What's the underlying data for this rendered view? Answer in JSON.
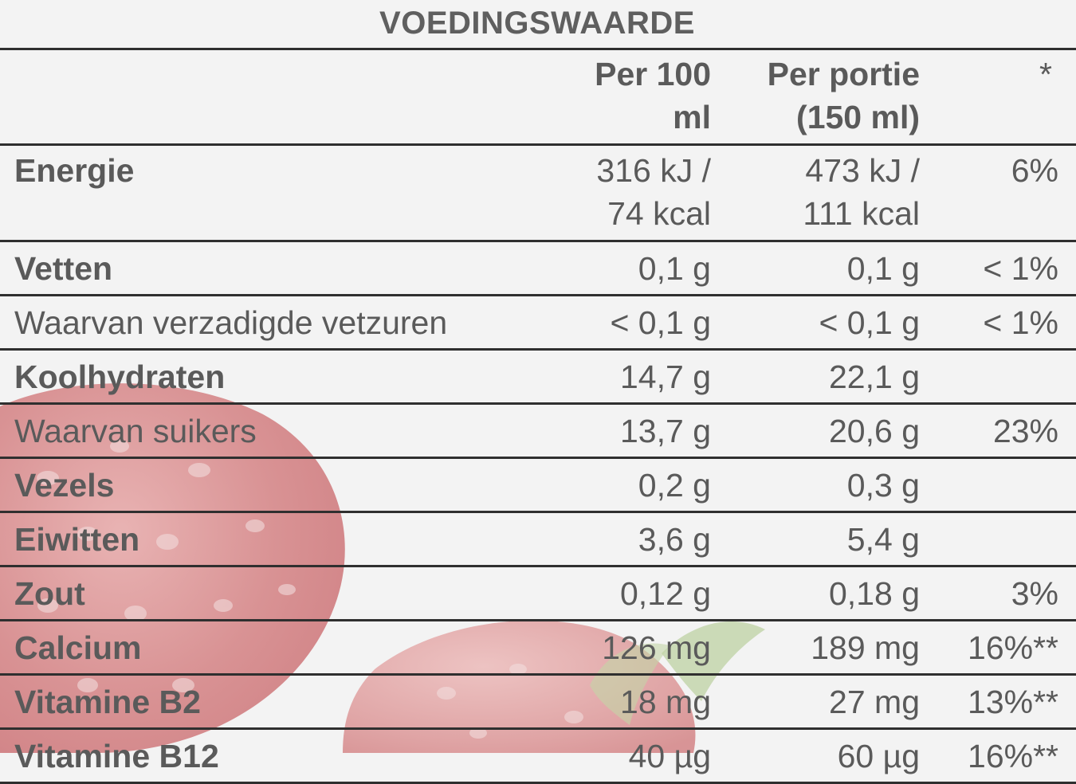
{
  "title": "VOEDINGSWAARDE",
  "header": {
    "col1_line1": "Per 100",
    "col1_line2": "ml",
    "col2_line1": "Per portie",
    "col2_line2": "(150 ml)",
    "col3": "*"
  },
  "rows": [
    {
      "name": "Energie",
      "per100_line1": "316 kJ /",
      "per100_line2": "74 kcal",
      "portion_line1": "473 kJ /",
      "portion_line2": "111 kcal",
      "ri": "6%"
    },
    {
      "name": "Vetten",
      "per100": "0,1 g",
      "portion": "0,1 g",
      "ri": "< 1%"
    },
    {
      "name": "Waarvan verzadigde vetzuren",
      "per100": "< 0,1 g",
      "portion": "< 0,1 g",
      "ri": "< 1%"
    },
    {
      "name": "Koolhydraten",
      "per100": "14,7 g",
      "portion": "22,1 g",
      "ri": ""
    },
    {
      "name": "Waarvan suikers",
      "per100": "13,7 g",
      "portion": "20,6 g",
      "ri": "23%"
    },
    {
      "name": "Vezels",
      "per100": "0,2 g",
      "portion": "0,3 g",
      "ri": ""
    },
    {
      "name": "Eiwitten",
      "per100": "3,6 g",
      "portion": "5,4 g",
      "ri": ""
    },
    {
      "name": "Zout",
      "per100": "0,12 g",
      "portion": "0,18 g",
      "ri": "3%"
    },
    {
      "name": "Calcium",
      "per100": "126 mg",
      "portion": "189 mg",
      "ri": "16%**"
    },
    {
      "name": "Vitamine B2",
      "per100": "18 mg",
      "portion": "27 mg",
      "ri": "13%**"
    },
    {
      "name": "Vitamine B12",
      "per100": "40 µg",
      "portion": "60 µg",
      "ri": "16%**"
    }
  ],
  "colors": {
    "text": "#5a5a5a",
    "rule": "#2f2f2f",
    "background": "#f3f3f3",
    "strawberry": "#c8555a",
    "leaf": "#b9cf9c"
  }
}
